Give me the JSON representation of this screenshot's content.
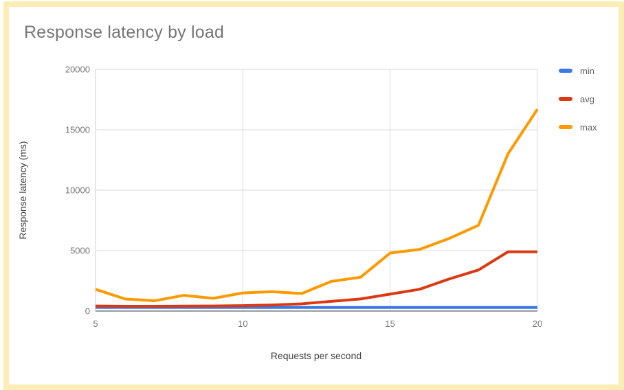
{
  "page": {
    "title": "Response latency by load",
    "frame_color": "#fbedb3",
    "background": "#ffffff"
  },
  "chart_data": {
    "type": "line",
    "title": "Response latency by load",
    "xlabel": "Requests per second",
    "ylabel": "Response latency (ms)",
    "x": [
      5,
      6,
      7,
      8,
      9,
      10,
      11,
      12,
      13,
      14,
      15,
      16,
      17,
      18,
      19,
      20
    ],
    "xlim": [
      5,
      20
    ],
    "ylim": [
      0,
      20000
    ],
    "x_ticks": [
      5,
      10,
      15,
      20
    ],
    "y_ticks": [
      0,
      5000,
      10000,
      15000,
      20000
    ],
    "grid": true,
    "legend_position": "right",
    "series": [
      {
        "name": "min",
        "color": "#3b78e7",
        "values": [
          300,
          300,
          300,
          300,
          300,
          300,
          300,
          300,
          300,
          300,
          300,
          300,
          300,
          300,
          300,
          300
        ]
      },
      {
        "name": "avg",
        "color": "#dc3912",
        "values": [
          420,
          400,
          400,
          410,
          420,
          450,
          500,
          600,
          800,
          1000,
          1400,
          1800,
          2650,
          3400,
          4900,
          4900
        ]
      },
      {
        "name": "max",
        "color": "#ff9900",
        "values": [
          1800,
          1000,
          850,
          1300,
          1050,
          1500,
          1600,
          1450,
          2450,
          2800,
          4800,
          5100,
          6000,
          7100,
          13000,
          16700
        ]
      }
    ]
  },
  "colors": {
    "gridline": "#dadada",
    "plot_border": "#cccccc",
    "baseline": "#333333",
    "title_text": "#757575",
    "tick_text": "#757575",
    "axis_title_text": "#424242",
    "legend_text": "#616161"
  }
}
